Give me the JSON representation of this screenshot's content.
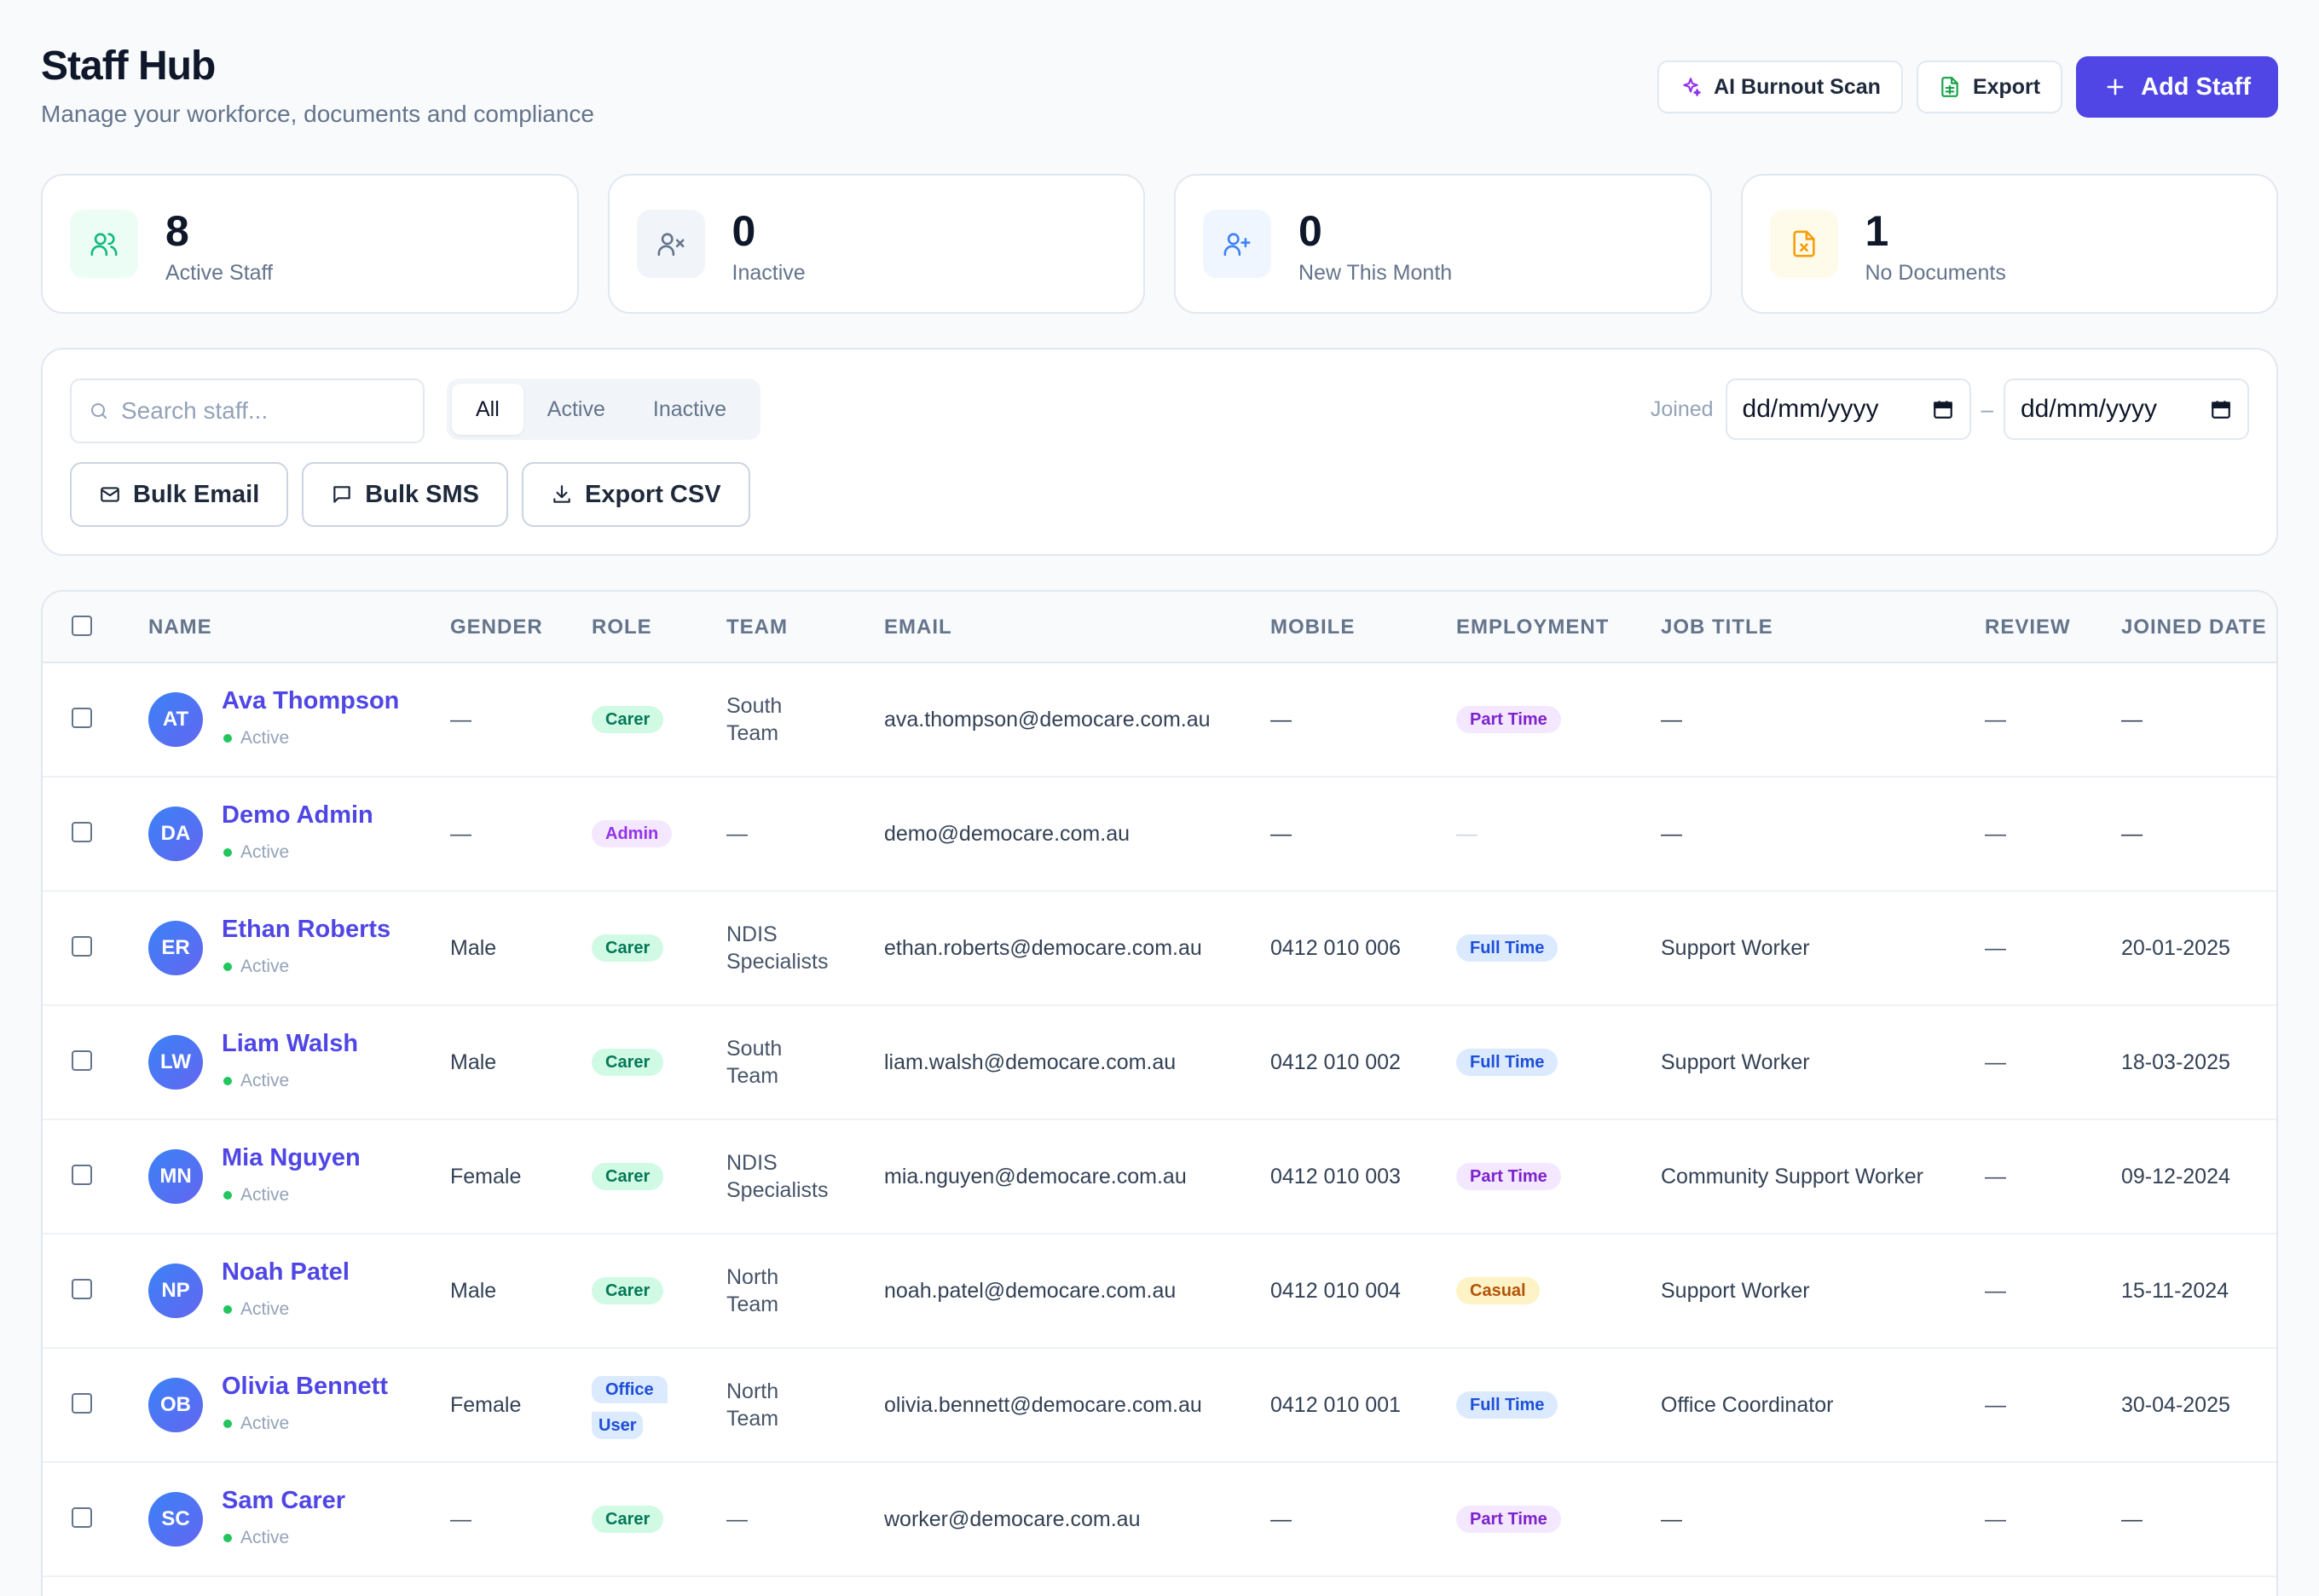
{
  "header": {
    "title": "Staff Hub",
    "subtitle": "Manage your workforce, documents and compliance",
    "ai_scan_label": "AI Burnout Scan",
    "export_label": "Export",
    "add_label": "Add Staff"
  },
  "stats": [
    {
      "value": "8",
      "label": "Active Staff",
      "icon": "users-icon",
      "bg": "#ecfdf5",
      "fg": "#10b981"
    },
    {
      "value": "0",
      "label": "Inactive",
      "icon": "user-x-icon",
      "bg": "#f1f5f9",
      "fg": "#64748b"
    },
    {
      "value": "0",
      "label": "New This Month",
      "icon": "user-plus-icon",
      "bg": "#eff6ff",
      "fg": "#3b82f6"
    },
    {
      "value": "1",
      "label": "No Documents",
      "icon": "file-x-icon",
      "bg": "#fffbeb",
      "fg": "#f59e0b"
    }
  ],
  "filters": {
    "search_placeholder": "Search staff...",
    "segments": [
      "All",
      "Active",
      "Inactive"
    ],
    "active_segment": "All",
    "joined_label": "Joined",
    "date_from": "dd/mm/yyyy",
    "date_to": "dd/mm/yyyy",
    "date_sep": "–",
    "bulk_email": "Bulk Email",
    "bulk_sms": "Bulk SMS",
    "export_csv": "Export CSV"
  },
  "table": {
    "columns": [
      "NAME",
      "GENDER",
      "ROLE",
      "TEAM",
      "EMAIL",
      "MOBILE",
      "EMPLOYMENT",
      "JOB TITLE",
      "REVIEW",
      "JOINED DATE"
    ],
    "rows": [
      {
        "initials": "AT",
        "name": "Ava Thompson",
        "status": "Active",
        "gender": "—",
        "role": [
          "Carer"
        ],
        "team": [
          "South",
          "Team"
        ],
        "email": "ava.thompson@democare.com.au",
        "mobile": "—",
        "employment": "Part Time",
        "job_title": "—",
        "review": "—",
        "joined": "—"
      },
      {
        "initials": "DA",
        "name": "Demo Admin",
        "status": "Active",
        "gender": "—",
        "role": [
          "Admin"
        ],
        "team": [
          "—"
        ],
        "email": "demo@democare.com.au",
        "mobile": "—",
        "employment": "—",
        "job_title": "—",
        "review": "—",
        "joined": "—"
      },
      {
        "initials": "ER",
        "name": "Ethan Roberts",
        "status": "Active",
        "gender": "Male",
        "role": [
          "Carer"
        ],
        "team": [
          "NDIS",
          "Specialists"
        ],
        "email": "ethan.roberts@democare.com.au",
        "mobile": "0412 010 006",
        "employment": "Full Time",
        "job_title": "Support Worker",
        "review": "—",
        "joined": "20-01-2025"
      },
      {
        "initials": "LW",
        "name": "Liam Walsh",
        "status": "Active",
        "gender": "Male",
        "role": [
          "Carer"
        ],
        "team": [
          "South",
          "Team"
        ],
        "email": "liam.walsh@democare.com.au",
        "mobile": "0412 010 002",
        "employment": "Full Time",
        "job_title": "Support Worker",
        "review": "—",
        "joined": "18-03-2025"
      },
      {
        "initials": "MN",
        "name": "Mia Nguyen",
        "status": "Active",
        "gender": "Female",
        "role": [
          "Carer"
        ],
        "team": [
          "NDIS",
          "Specialists"
        ],
        "email": "mia.nguyen@democare.com.au",
        "mobile": "0412 010 003",
        "employment": "Part Time",
        "job_title": "Community Support Worker",
        "review": "—",
        "joined": "09-12-2024"
      },
      {
        "initials": "NP",
        "name": "Noah Patel",
        "status": "Active",
        "gender": "Male",
        "role": [
          "Carer"
        ],
        "team": [
          "North",
          "Team"
        ],
        "email": "noah.patel@democare.com.au",
        "mobile": "0412 010 004",
        "employment": "Casual",
        "job_title": "Support Worker",
        "review": "—",
        "joined": "15-11-2024"
      },
      {
        "initials": "OB",
        "name": "Olivia Bennett",
        "status": "Active",
        "gender": "Female",
        "role": [
          "Office",
          "User"
        ],
        "team": [
          "North",
          "Team"
        ],
        "email": "olivia.bennett@democare.com.au",
        "mobile": "0412 010 001",
        "employment": "Full Time",
        "job_title": "Office Coordinator",
        "review": "—",
        "joined": "30-04-2025"
      },
      {
        "initials": "SC",
        "name": "Sam Carer",
        "status": "Active",
        "gender": "—",
        "role": [
          "Carer"
        ],
        "team": [
          "—"
        ],
        "email": "worker@democare.com.au",
        "mobile": "—",
        "employment": "Part Time",
        "job_title": "—",
        "review": "—",
        "joined": "—"
      }
    ]
  },
  "colors": {
    "accent": "#4f46e5",
    "active_dot": "#22c55e"
  }
}
